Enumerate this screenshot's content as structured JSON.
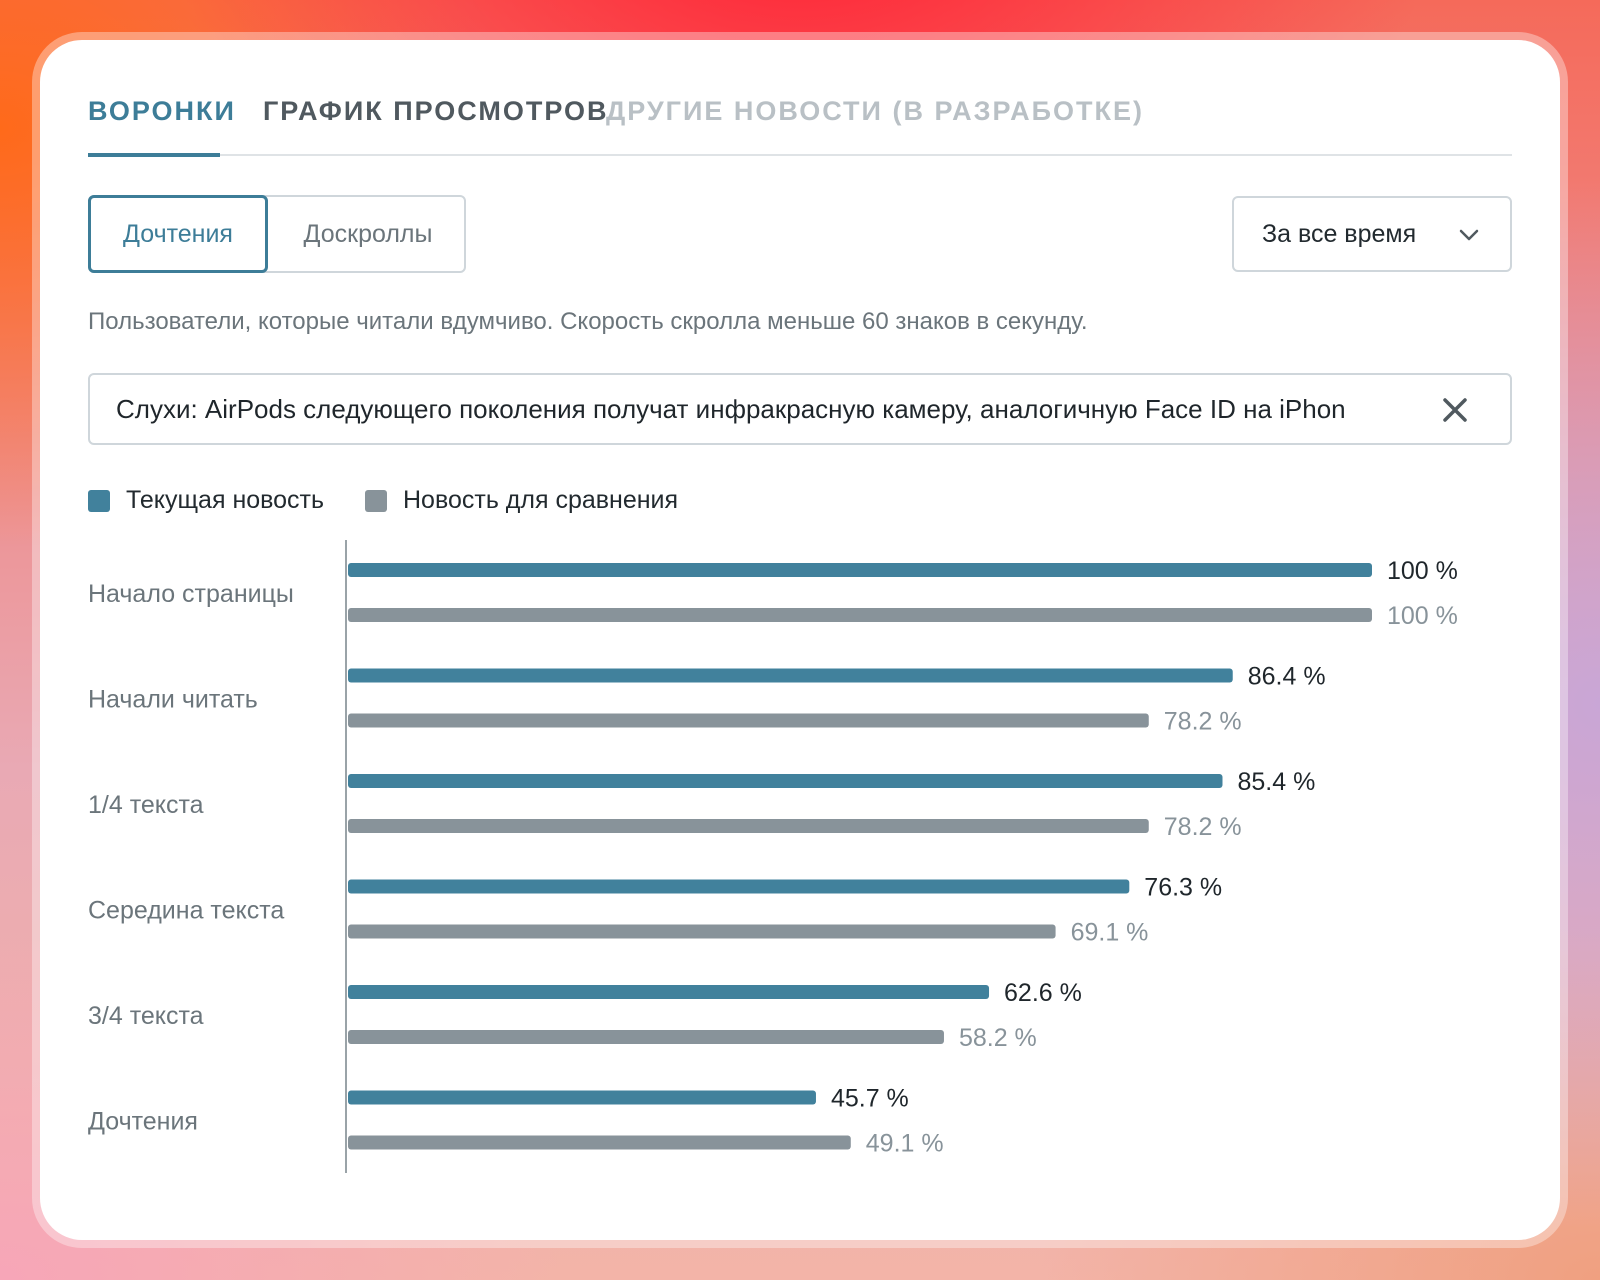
{
  "tabs": [
    {
      "label": "ВОРОНКИ",
      "state": "active"
    },
    {
      "label": "ГРАФИК ПРОСМОТРОВ",
      "state": "normal"
    },
    {
      "label": "ДРУГИЕ НОВОСТИ (В РАЗРАБОТКЕ)",
      "state": "disabled"
    }
  ],
  "segment": {
    "options": [
      "Дочтения",
      "Доскроллы"
    ],
    "selected": "Дочтения"
  },
  "period": {
    "value": "За все время",
    "icon": "chevron-down-icon"
  },
  "description": "Пользователи, которые читали вдумчиво. Скорость скролла меньше 60 знаков в секунду.",
  "search": {
    "value": "Слухи: AirPods следующего поколения получат инфракрасную камеру, аналогичную Face ID на iPhon",
    "clear_icon": "close-icon"
  },
  "colors": {
    "accent": "#3d7d98",
    "current": "#41819c",
    "comparison": "#88939a",
    "current_label": "#1f262b",
    "comparison_label": "#88939a"
  },
  "chart_data": {
    "type": "bar",
    "orientation": "horizontal",
    "categories": [
      "Начало страницы",
      "Начали читать",
      "1/4 текста",
      "Середина текста",
      "3/4 текста",
      "Дочтения"
    ],
    "series": [
      {
        "name": "Текущая новость",
        "values": [
          100,
          86.4,
          85.4,
          76.3,
          62.6,
          45.7
        ]
      },
      {
        "name": "Новость для сравнения",
        "values": [
          100,
          78.2,
          78.2,
          69.1,
          58.2,
          49.1
        ]
      }
    ],
    "value_suffix": " %",
    "xlim": [
      0,
      100
    ],
    "legend_position": "top-left",
    "grid": false
  }
}
